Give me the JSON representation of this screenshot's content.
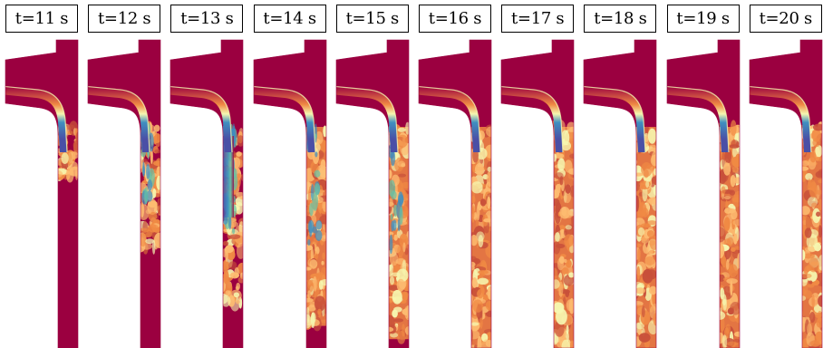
{
  "figure": {
    "panels": [
      {
        "label": "t=11 s",
        "turbulent_fraction": 0.22
      },
      {
        "label": "t=12 s",
        "turbulent_fraction": 0.55
      },
      {
        "label": "t=13 s",
        "turbulent_fraction": 0.8
      },
      {
        "label": "t=14 s",
        "turbulent_fraction": 0.9
      },
      {
        "label": "t=15 s",
        "turbulent_fraction": 0.96
      },
      {
        "label": "t=16 s",
        "turbulent_fraction": 1.0
      },
      {
        "label": "t=17 s",
        "turbulent_fraction": 1.0
      },
      {
        "label": "t=18 s",
        "turbulent_fraction": 1.0
      },
      {
        "label": "t=19 s",
        "turbulent_fraction": 1.0
      },
      {
        "label": "t=20 s",
        "turbulent_fraction": 1.0
      }
    ],
    "colors": {
      "background_fluid": "#9b0040",
      "jet_dark": "#4a4fa6",
      "jet_light": "#3f8fc0",
      "mixing_teal": "#66c2a5",
      "mixing_yellow": "#f6f7b0",
      "turbulent_light": "#fdbb70",
      "turbulent_orange": "#f08a44",
      "turbulent_dark": "#c8503a"
    }
  }
}
